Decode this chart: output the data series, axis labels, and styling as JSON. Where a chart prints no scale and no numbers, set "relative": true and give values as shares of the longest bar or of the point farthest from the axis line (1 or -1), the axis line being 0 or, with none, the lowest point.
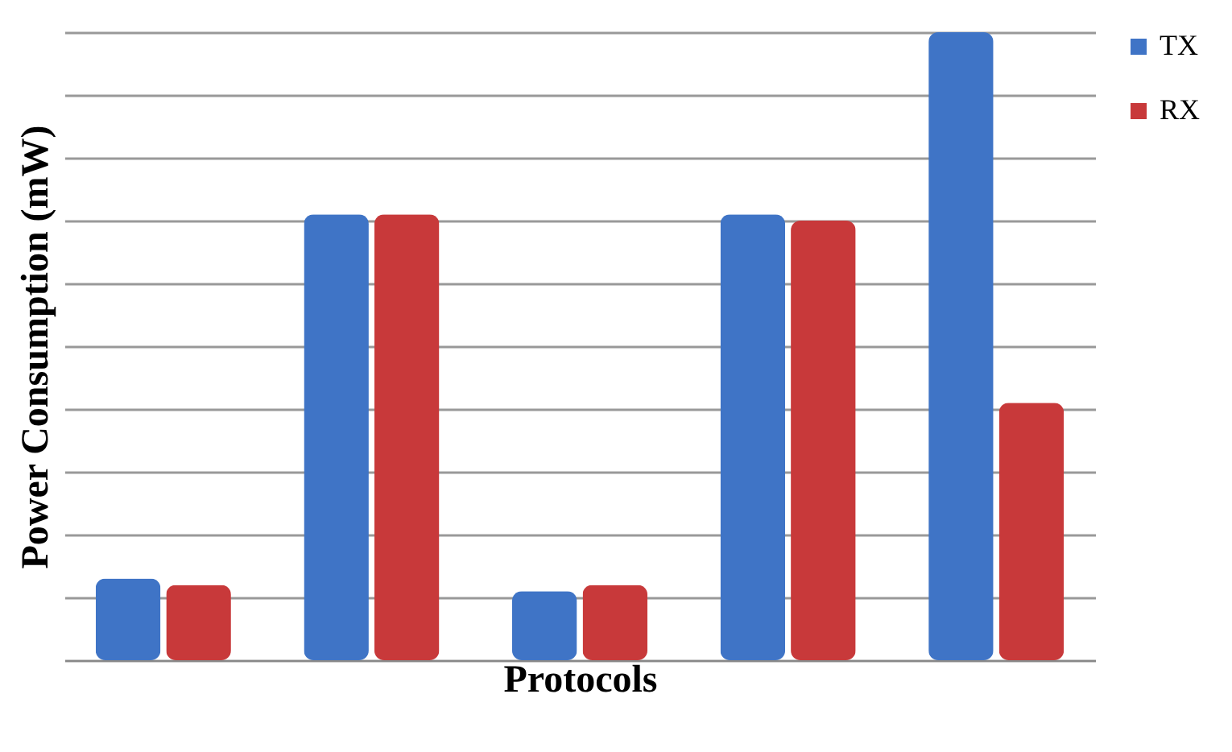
{
  "chart_data": {
    "type": "bar",
    "relative": true,
    "xlabel": "Protocols",
    "ylabel": "Power Consumption (mW)",
    "categories": [
      null,
      null,
      null,
      null,
      null
    ],
    "series": [
      {
        "name": "TX",
        "color": "#3f74c6",
        "values": [
          0.13,
          0.71,
          0.11,
          0.71,
          1
        ]
      },
      {
        "name": "RX",
        "color": "#c8393a",
        "values": [
          0.12,
          0.71,
          0.12,
          0.7,
          0.41
        ]
      }
    ],
    "grid": "y",
    "legend": "right"
  }
}
